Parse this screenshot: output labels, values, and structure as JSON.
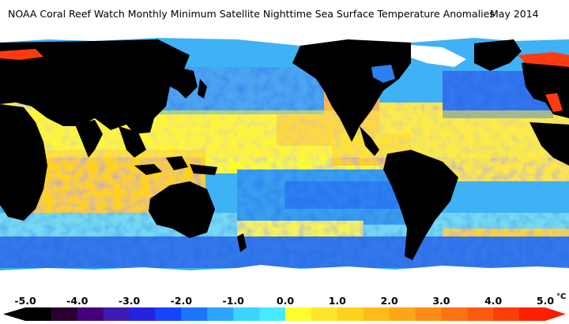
{
  "title": {
    "text": "NOAA Coral Reef Watch Monthly Minimum Satellite Nighttime Sea Surface Temperature Anomalies",
    "date": "May 2014"
  },
  "map": {
    "subject": "Global sea surface temperature anomaly map",
    "land_color": "#000000",
    "ice_color": "#ffffff",
    "ocean_palette": [
      "#1a63e8",
      "#3fb1f5",
      "#48e0f5",
      "#fffc2b",
      "#ffd21a",
      "#ffa21a"
    ]
  },
  "legend": {
    "ticks": [
      "-5.0",
      "-4.0",
      "-3.0",
      "-2.0",
      "-1.0",
      "0.0",
      "1.0",
      "2.0",
      "3.0",
      "4.0",
      "5.0"
    ],
    "unit": "°C",
    "colors": [
      "#000000",
      "#2a0033",
      "#44007a",
      "#3d1ab5",
      "#2424e0",
      "#1645ff",
      "#1d75ff",
      "#2aa4ff",
      "#3bd3ff",
      "#44eaff",
      "#fffd2c",
      "#ffe52c",
      "#ffd21c",
      "#ffbc19",
      "#ffa518",
      "#ff8c16",
      "#ff7212",
      "#ff5a0e",
      "#ff3d08",
      "#ff2000"
    ],
    "min_arrow_color": "#000000",
    "max_arrow_color": "#ff1a00"
  }
}
